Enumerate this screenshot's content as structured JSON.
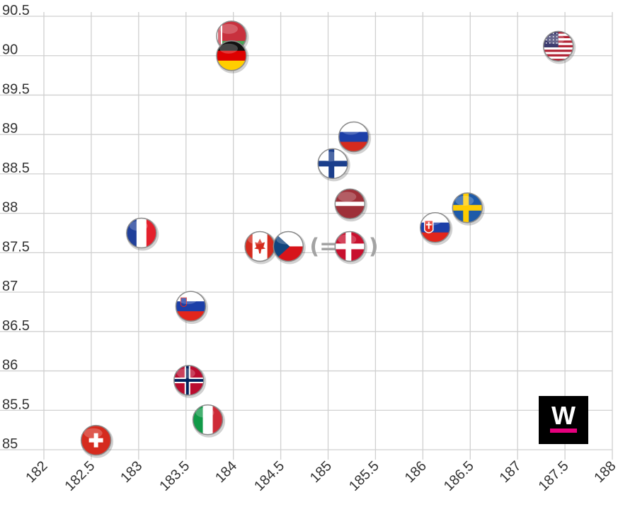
{
  "chart_data": {
    "type": "scatter",
    "title": "",
    "xlabel": "",
    "ylabel": "",
    "xlim": [
      182,
      188
    ],
    "ylim": [
      85,
      90.5
    ],
    "x_ticks": [
      "182",
      "182.5",
      "183",
      "183.5",
      "184",
      "184.5",
      "185",
      "185.5",
      "186",
      "186.5",
      "187",
      "187.5",
      "188"
    ],
    "y_ticks": [
      "85",
      "85.5",
      "86",
      "86.5",
      "87",
      "87.5",
      "88",
      "88.5",
      "89",
      "89.5",
      "90",
      "90.5"
    ],
    "grid": true,
    "points": [
      {
        "flag": "switzerland-flag",
        "x": 182.55,
        "y": 85.12
      },
      {
        "flag": "france-flag",
        "x": 183.03,
        "y": 87.75
      },
      {
        "flag": "slovenia-flag",
        "x": 183.55,
        "y": 86.82
      },
      {
        "flag": "norway-flag",
        "x": 183.53,
        "y": 85.88
      },
      {
        "flag": "italy-flag",
        "x": 183.73,
        "y": 85.38
      },
      {
        "flag": "belarus-flag",
        "x": 183.98,
        "y": 90.25
      },
      {
        "flag": "germany-flag",
        "x": 183.98,
        "y": 90.0
      },
      {
        "flag": "canada-flag",
        "x": 184.28,
        "y": 87.58
      },
      {
        "flag": "czech-flag",
        "x": 184.58,
        "y": 87.58
      },
      {
        "flag": "denmark-flag",
        "x": 185.23,
        "y": 87.58
      },
      {
        "flag": "latvia-flag",
        "x": 185.23,
        "y": 88.12
      },
      {
        "flag": "finland-flag",
        "x": 185.05,
        "y": 88.63
      },
      {
        "flag": "russia-flag",
        "x": 185.27,
        "y": 88.97
      },
      {
        "flag": "slovakia-flag",
        "x": 186.13,
        "y": 87.82
      },
      {
        "flag": "sweden-flag",
        "x": 186.47,
        "y": 88.07
      },
      {
        "flag": "usa-flag",
        "x": 187.43,
        "y": 90.12
      }
    ],
    "annotations": [
      {
        "text": "(=",
        "x": 184.95,
        "y": 87.58
      },
      {
        "text": ")",
        "x": 185.48,
        "y": 87.58
      }
    ]
  },
  "logo": {
    "letter": "W",
    "color": "#e6007e",
    "background": "#000000"
  }
}
